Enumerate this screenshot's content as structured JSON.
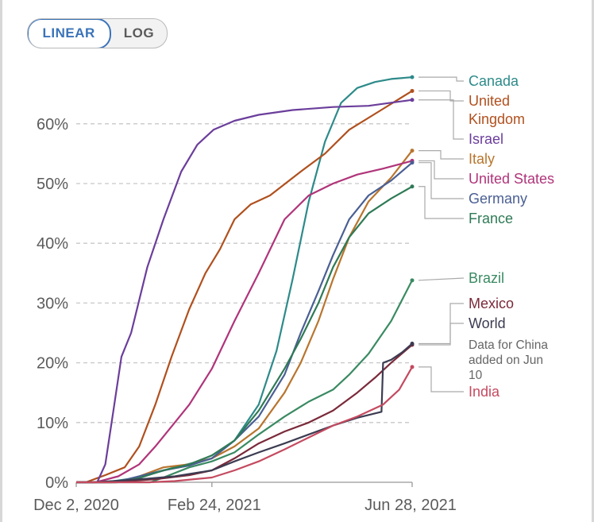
{
  "scale_toggle": {
    "options": [
      "LINEAR",
      "LOG"
    ],
    "selected": "LINEAR"
  },
  "colors": {
    "Canada": "#2e8a8a",
    "United Kingdom": "#b0501e",
    "Israel": "#6b3e9b",
    "Italy": "#b8752e",
    "United States": "#b0347a",
    "Germany": "#4a5f93",
    "France": "#2f7a56",
    "Brazil": "#3a8a62",
    "Mexico": "#7a2a3a",
    "World": "#3c3c52",
    "India": "#c44a60"
  },
  "chart_data": {
    "type": "line",
    "title": "",
    "xlabel": "",
    "ylabel": "",
    "ylim": [
      0,
      70
    ],
    "yticks": [
      0,
      10,
      20,
      30,
      40,
      50,
      60
    ],
    "ytick_labels": [
      "0%",
      "10%",
      "20%",
      "30%",
      "40%",
      "50%",
      "60%"
    ],
    "xlim": [
      "2020-12-02",
      "2021-06-28"
    ],
    "xticks": [
      "2020-12-02",
      "2021-02-24",
      "2021-06-28"
    ],
    "xtick_labels": [
      "Dec 2, 2020",
      "Feb 24, 2021",
      "Jun 28, 2021"
    ],
    "grid": true,
    "legend_placement": "right end labels",
    "series": [
      {
        "name": "Canada",
        "label_lines": [
          "Canada"
        ],
        "points": [
          [
            "2020-12-02",
            0
          ],
          [
            "2020-12-20",
            0
          ],
          [
            "2021-01-10",
            0.8
          ],
          [
            "2021-02-01",
            2.5
          ],
          [
            "2021-02-24",
            4
          ],
          [
            "2021-03-10",
            7
          ],
          [
            "2021-03-25",
            13
          ],
          [
            "2021-04-05",
            22
          ],
          [
            "2021-04-15",
            34
          ],
          [
            "2021-04-25",
            47
          ],
          [
            "2021-05-05",
            57
          ],
          [
            "2021-05-15",
            63.5
          ],
          [
            "2021-05-25",
            66
          ],
          [
            "2021-06-05",
            67
          ],
          [
            "2021-06-15",
            67.5
          ],
          [
            "2021-06-28",
            67.8
          ]
        ]
      },
      {
        "name": "United Kingdom",
        "label_lines": [
          "United",
          "Kingdom"
        ],
        "points": [
          [
            "2020-12-02",
            0
          ],
          [
            "2020-12-08",
            0
          ],
          [
            "2020-12-20",
            1.2
          ],
          [
            "2021-01-01",
            2.5
          ],
          [
            "2021-01-10",
            6
          ],
          [
            "2021-01-20",
            13
          ],
          [
            "2021-01-30",
            21
          ],
          [
            "2021-02-10",
            29
          ],
          [
            "2021-02-20",
            35
          ],
          [
            "2021-03-01",
            39
          ],
          [
            "2021-03-10",
            44
          ],
          [
            "2021-03-20",
            46.5
          ],
          [
            "2021-04-01",
            48
          ],
          [
            "2021-04-20",
            52
          ],
          [
            "2021-05-05",
            55
          ],
          [
            "2021-05-20",
            59
          ],
          [
            "2021-06-10",
            62.5
          ],
          [
            "2021-06-28",
            65.5
          ]
        ]
      },
      {
        "name": "Israel",
        "label_lines": [
          "Israel"
        ],
        "points": [
          [
            "2020-12-02",
            0
          ],
          [
            "2020-12-15",
            0
          ],
          [
            "2020-12-20",
            3
          ],
          [
            "2020-12-25",
            12
          ],
          [
            "2020-12-30",
            21
          ],
          [
            "2021-01-05",
            25
          ],
          [
            "2021-01-15",
            36
          ],
          [
            "2021-01-25",
            44
          ],
          [
            "2021-02-05",
            52
          ],
          [
            "2021-02-15",
            56.5
          ],
          [
            "2021-02-25",
            59
          ],
          [
            "2021-03-10",
            60.5
          ],
          [
            "2021-03-25",
            61.5
          ],
          [
            "2021-04-15",
            62.3
          ],
          [
            "2021-05-10",
            62.8
          ],
          [
            "2021-06-01",
            63
          ],
          [
            "2021-06-28",
            64
          ]
        ]
      },
      {
        "name": "Italy",
        "label_lines": [
          "Italy"
        ],
        "points": [
          [
            "2020-12-02",
            0
          ],
          [
            "2020-12-28",
            0
          ],
          [
            "2021-01-10",
            1
          ],
          [
            "2021-01-25",
            2.5
          ],
          [
            "2021-02-10",
            3
          ],
          [
            "2021-02-24",
            4
          ],
          [
            "2021-03-10",
            6
          ],
          [
            "2021-03-25",
            9
          ],
          [
            "2021-04-10",
            15
          ],
          [
            "2021-04-20",
            20
          ],
          [
            "2021-05-01",
            27
          ],
          [
            "2021-05-10",
            34
          ],
          [
            "2021-05-20",
            41
          ],
          [
            "2021-06-01",
            47
          ],
          [
            "2021-06-15",
            51
          ],
          [
            "2021-06-28",
            55.5
          ]
        ]
      },
      {
        "name": "United States",
        "label_lines": [
          "United States"
        ],
        "points": [
          [
            "2020-12-02",
            0
          ],
          [
            "2020-12-14",
            0
          ],
          [
            "2020-12-28",
            1
          ],
          [
            "2021-01-10",
            3
          ],
          [
            "2021-01-20",
            6
          ],
          [
            "2021-02-01",
            10
          ],
          [
            "2021-02-10",
            13
          ],
          [
            "2021-02-24",
            19
          ],
          [
            "2021-03-10",
            27
          ],
          [
            "2021-03-25",
            35
          ],
          [
            "2021-04-10",
            44
          ],
          [
            "2021-04-25",
            48
          ],
          [
            "2021-05-10",
            50
          ],
          [
            "2021-05-25",
            51.5
          ],
          [
            "2021-06-10",
            52.5
          ],
          [
            "2021-06-28",
            53.8
          ]
        ]
      },
      {
        "name": "Germany",
        "label_lines": [
          "Germany"
        ],
        "points": [
          [
            "2020-12-02",
            0
          ],
          [
            "2020-12-26",
            0
          ],
          [
            "2021-01-10",
            1
          ],
          [
            "2021-01-25",
            2
          ],
          [
            "2021-02-10",
            2.8
          ],
          [
            "2021-02-24",
            4
          ],
          [
            "2021-03-10",
            7
          ],
          [
            "2021-03-25",
            11
          ],
          [
            "2021-04-10",
            18
          ],
          [
            "2021-04-20",
            25
          ],
          [
            "2021-05-01",
            32
          ],
          [
            "2021-05-10",
            38
          ],
          [
            "2021-05-20",
            44
          ],
          [
            "2021-06-01",
            48
          ],
          [
            "2021-06-15",
            50.5
          ],
          [
            "2021-06-28",
            53.5
          ]
        ]
      },
      {
        "name": "France",
        "label_lines": [
          "France"
        ],
        "points": [
          [
            "2020-12-02",
            0
          ],
          [
            "2020-12-27",
            0
          ],
          [
            "2021-01-10",
            0.7
          ],
          [
            "2021-01-25",
            2
          ],
          [
            "2021-02-10",
            3
          ],
          [
            "2021-02-24",
            4.5
          ],
          [
            "2021-03-10",
            7
          ],
          [
            "2021-03-25",
            12
          ],
          [
            "2021-04-10",
            19
          ],
          [
            "2021-04-20",
            24
          ],
          [
            "2021-05-01",
            30
          ],
          [
            "2021-05-10",
            36
          ],
          [
            "2021-05-20",
            41
          ],
          [
            "2021-06-01",
            45
          ],
          [
            "2021-06-15",
            47.5
          ],
          [
            "2021-06-28",
            49.5
          ]
        ]
      },
      {
        "name": "Brazil",
        "label_lines": [
          "Brazil"
        ],
        "points": [
          [
            "2020-12-02",
            0
          ],
          [
            "2021-01-17",
            0
          ],
          [
            "2021-01-25",
            0.8
          ],
          [
            "2021-02-10",
            2.5
          ],
          [
            "2021-02-24",
            3.5
          ],
          [
            "2021-03-10",
            5
          ],
          [
            "2021-03-25",
            8
          ],
          [
            "2021-04-10",
            11
          ],
          [
            "2021-04-25",
            13.5
          ],
          [
            "2021-05-10",
            15.5
          ],
          [
            "2021-05-20",
            18
          ],
          [
            "2021-06-01",
            21.5
          ],
          [
            "2021-06-15",
            27
          ],
          [
            "2021-06-28",
            33.8
          ]
        ]
      },
      {
        "name": "Mexico",
        "label_lines": [
          "Mexico"
        ],
        "points": [
          [
            "2020-12-02",
            0
          ],
          [
            "2020-12-24",
            0
          ],
          [
            "2021-01-20",
            0.5
          ],
          [
            "2021-02-10",
            1.2
          ],
          [
            "2021-02-24",
            2
          ],
          [
            "2021-03-10",
            4
          ],
          [
            "2021-03-25",
            6.5
          ],
          [
            "2021-04-10",
            8.5
          ],
          [
            "2021-04-25",
            10
          ],
          [
            "2021-05-10",
            12
          ],
          [
            "2021-05-25",
            15
          ],
          [
            "2021-06-05",
            17.5
          ],
          [
            "2021-06-15",
            20
          ],
          [
            "2021-06-28",
            23
          ]
        ]
      },
      {
        "name": "World",
        "label_lines": [
          "World"
        ],
        "points": [
          [
            "2020-12-02",
            0
          ],
          [
            "2020-12-12",
            0
          ],
          [
            "2020-12-25",
            0.2
          ],
          [
            "2021-01-15",
            0.6
          ],
          [
            "2021-02-01",
            1
          ],
          [
            "2021-02-24",
            2
          ],
          [
            "2021-03-10",
            3.5
          ],
          [
            "2021-03-25",
            5
          ],
          [
            "2021-04-10",
            6.5
          ],
          [
            "2021-04-25",
            8
          ],
          [
            "2021-05-10",
            9.5
          ],
          [
            "2021-05-25",
            10.8
          ],
          [
            "2021-06-09",
            11.8
          ],
          [
            "2021-06-10",
            20
          ],
          [
            "2021-06-15",
            20.5
          ],
          [
            "2021-06-22",
            21.8
          ],
          [
            "2021-06-28",
            23.2
          ]
        ]
      },
      {
        "name": "India",
        "label_lines": [
          "India"
        ],
        "points": [
          [
            "2020-12-02",
            0
          ],
          [
            "2021-01-16",
            0
          ],
          [
            "2021-02-01",
            0.2
          ],
          [
            "2021-02-24",
            0.8
          ],
          [
            "2021-03-10",
            2
          ],
          [
            "2021-03-25",
            3.5
          ],
          [
            "2021-04-10",
            5.5
          ],
          [
            "2021-04-25",
            7.5
          ],
          [
            "2021-05-10",
            9.5
          ],
          [
            "2021-05-25",
            11
          ],
          [
            "2021-06-10",
            13
          ],
          [
            "2021-06-20",
            15.5
          ],
          [
            "2021-06-28",
            19.3
          ]
        ]
      }
    ],
    "annotations": [
      {
        "series": "World",
        "lines": [
          "Data for China",
          "added on Jun",
          "10"
        ]
      }
    ]
  }
}
